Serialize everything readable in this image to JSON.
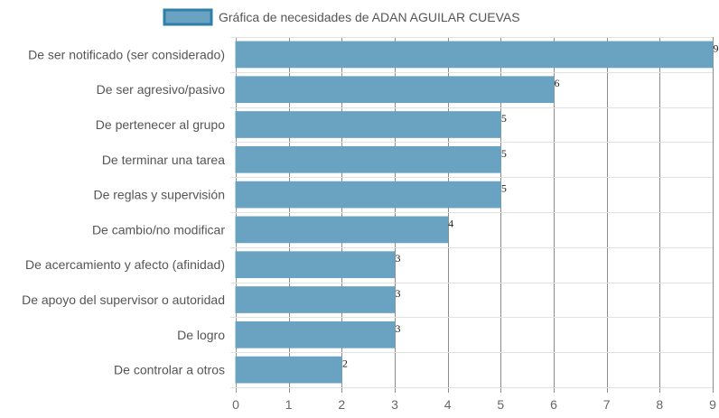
{
  "chart_data": {
    "type": "bar",
    "orientation": "horizontal",
    "categories": [
      "De ser notificado (ser considerado)",
      "De ser agresivo/pasivo",
      "De pertenecer al grupo",
      "De terminar una tarea",
      "De reglas y supervisión",
      "De cambio/no modificar",
      "De acercamiento y afecto (afinidad)",
      "De apoyo del supervisor o autoridad",
      "De logro",
      "De controlar a otros"
    ],
    "series": [
      {
        "name": "Gráfica de necesidades de ADAN AGUILAR CUEVAS",
        "values": [
          9,
          6,
          5,
          5,
          5,
          4,
          3,
          3,
          3,
          2
        ],
        "color": "#6aa3c2",
        "border_color": "#2f7fa8"
      }
    ],
    "x_ticks": [
      "0",
      "1",
      "2",
      "3",
      "4",
      "5",
      "6",
      "7",
      "8",
      "9"
    ],
    "xlim": [
      0,
      9
    ],
    "title": "",
    "xlabel": "",
    "ylabel": "",
    "grid": true,
    "legend_position": "top"
  }
}
